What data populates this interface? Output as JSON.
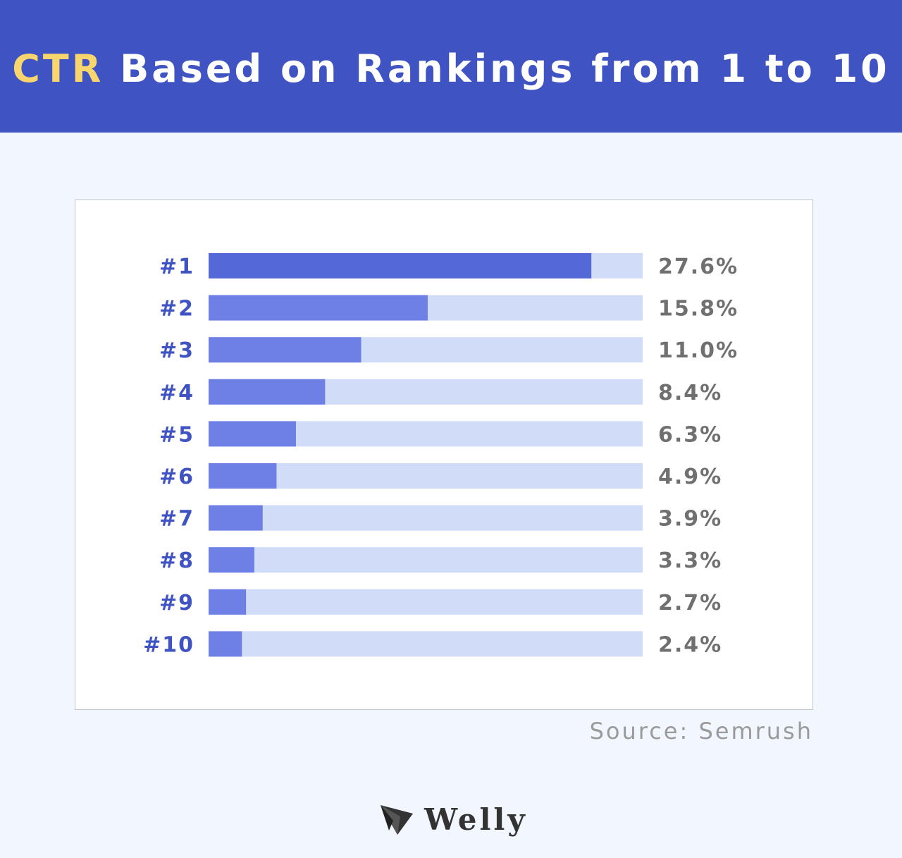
{
  "header": {
    "title_accent": "CTR",
    "title_rest": "Based on Rankings from 1 to 10"
  },
  "chart_data": {
    "type": "bar",
    "orientation": "horizontal",
    "title": "CTR Based on Rankings from 1 to 10",
    "categories": [
      "#1",
      "#2",
      "#3",
      "#4",
      "#5",
      "#6",
      "#7",
      "#8",
      "#9",
      "#10"
    ],
    "values": [
      27.6,
      15.8,
      11.0,
      8.4,
      6.3,
      4.9,
      3.9,
      3.3,
      2.7,
      2.4
    ],
    "value_labels": [
      "27.6%",
      "15.8%",
      "11.0%",
      "8.4%",
      "6.3%",
      "4.9%",
      "3.9%",
      "3.3%",
      "2.7%",
      "2.4%"
    ],
    "xlim": [
      0,
      31.3
    ],
    "unit": "%",
    "grid": false,
    "legend": "none"
  },
  "source": "Source: Semrush",
  "logo": {
    "text": "Welly",
    "icon": "paper-plane-icon"
  },
  "colors": {
    "header_bg": "#3f53c3",
    "title_accent": "#f9d56e",
    "bar_top": "#5468d8",
    "bar_fill": "#6e80e6",
    "bar_track": "#d0dcf8",
    "rank_label": "#3f53c3",
    "value_label": "#707070"
  }
}
